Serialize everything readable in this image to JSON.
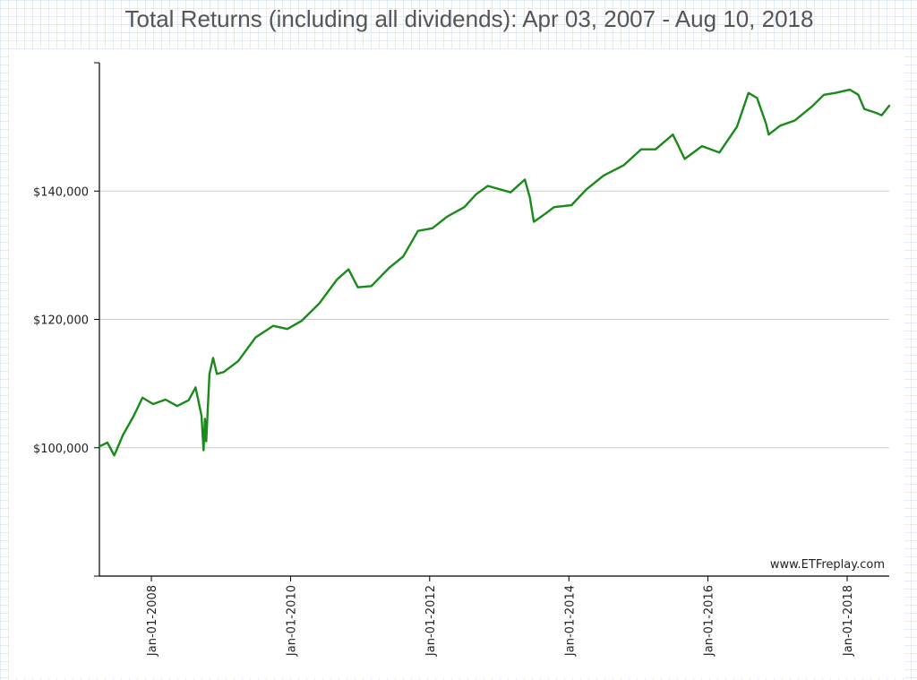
{
  "chart_data": {
    "type": "line",
    "title": "Total Returns (including all dividends): Apr 03, 2007 - Aug 10, 2018",
    "xlabel": "",
    "ylabel": "",
    "x_ticks": [
      "Jan-01-2008",
      "Jan-01-2010",
      "Jan-01-2012",
      "Jan-01-2014",
      "Jan-01-2016",
      "Jan-01-2018"
    ],
    "y_ticks": [
      100000,
      120000,
      140000
    ],
    "y_tick_labels": [
      "$100,000",
      "$120,000",
      "$140,000"
    ],
    "xlim": [
      "2007-04-03",
      "2018-08-10"
    ],
    "ylim": [
      80000,
      160000
    ],
    "grid": "horizontal",
    "watermark": "www.ETFreplay.com",
    "colors": {
      "line": "#1a8a1a",
      "grid": "#cccccc",
      "axis": "#000000"
    },
    "series": [
      {
        "x": [
          "2007-04-03",
          "2007-05-15",
          "2007-06-20",
          "2007-08-05",
          "2007-10-01",
          "2007-11-15",
          "2008-01-10",
          "2008-03-15",
          "2008-05-15",
          "2008-07-15",
          "2008-08-20",
          "2008-09-20",
          "2008-10-01",
          "2008-10-08",
          "2008-10-15",
          "2008-11-01",
          "2008-11-20",
          "2008-12-10",
          "2009-01-15",
          "2009-04-01",
          "2009-07-01",
          "2009-10-01",
          "2009-12-15",
          "2010-03-01",
          "2010-06-01",
          "2010-09-01",
          "2010-11-01",
          "2010-12-20",
          "2011-03-01",
          "2011-06-01",
          "2011-08-15",
          "2011-11-01",
          "2012-01-15",
          "2012-04-01",
          "2012-07-01",
          "2012-09-01",
          "2012-11-01",
          "2013-03-01",
          "2013-05-15",
          "2013-06-10",
          "2013-07-01",
          "2013-09-01",
          "2013-10-15",
          "2014-01-15",
          "2014-04-01",
          "2014-07-01",
          "2014-10-15",
          "2015-01-15",
          "2015-04-01",
          "2015-07-01",
          "2015-09-01",
          "2015-12-01",
          "2016-03-01",
          "2016-06-01",
          "2016-08-01",
          "2016-09-15",
          "2016-11-01",
          "2016-11-15",
          "2017-01-15",
          "2017-04-01",
          "2017-07-01",
          "2017-09-01",
          "2017-11-01",
          "2018-01-15",
          "2018-03-01",
          "2018-04-01",
          "2018-06-01",
          "2018-07-01",
          "2018-08-10"
        ],
        "values": [
          100200,
          100800,
          98800,
          102000,
          105000,
          107800,
          106800,
          107500,
          106500,
          107400,
          109400,
          105000,
          99600,
          104500,
          101000,
          111500,
          114000,
          111500,
          111800,
          113500,
          117200,
          119000,
          118500,
          119800,
          122500,
          126200,
          127800,
          125000,
          125200,
          128000,
          129800,
          133800,
          134200,
          136000,
          137500,
          139500,
          140800,
          139800,
          141800,
          139000,
          135200,
          136500,
          137500,
          137800,
          140200,
          142400,
          144000,
          146500,
          146500,
          148800,
          145000,
          147000,
          146000,
          150000,
          155300,
          154500,
          150500,
          148800,
          150200,
          151000,
          153200,
          155000,
          155300,
          155800,
          155000,
          152800,
          152200,
          151800,
          153300
        ]
      }
    ]
  }
}
